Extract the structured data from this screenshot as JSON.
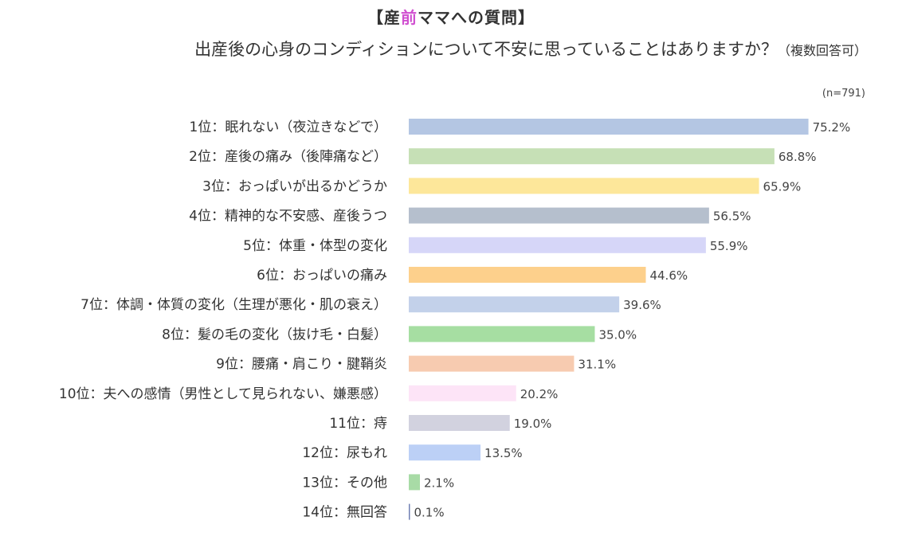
{
  "header": {
    "title_open": "【産",
    "title_accent": "前",
    "title_close": "ママへの質問】",
    "subtitle": "出産後の心身のコンディションについて不安に思っていることはありますか？",
    "subtitle_note": "（複数回答可）",
    "sample_size": "(n=791)"
  },
  "colors": {
    "title_accent": "#d04fd0"
  },
  "chart_data": {
    "type": "bar",
    "orientation": "horizontal",
    "categories": [
      "1位：眠れない（夜泣きなどで）",
      "2位：産後の痛み（後陣痛など）",
      "3位：おっぱいが出るかどうか",
      "4位：精神的な不安感、産後うつ",
      "5位：体重・体型の変化",
      "6位：おっぱいの痛み",
      "7位：体調・体質の変化（生理が悪化・肌の衰え）",
      "8位：髪の毛の変化（抜け毛・白髪）",
      "9位：腰痛・肩こり・腱鞘炎",
      "10位：夫への感情（男性として見られない、嫌悪感）",
      "11位：痔",
      "12位：尿もれ",
      "13位：その他",
      "14位：無回答"
    ],
    "values": [
      75.2,
      68.8,
      65.9,
      56.5,
      55.9,
      44.6,
      39.6,
      35.0,
      31.1,
      20.2,
      19.0,
      13.5,
      2.1,
      0.1
    ],
    "value_labels": [
      "75.2%",
      "68.8%",
      "65.9%",
      "56.5%",
      "55.9%",
      "44.6%",
      "39.6%",
      "35.0%",
      "31.1%",
      "20.2%",
      "19.0%",
      "13.5%",
      "2.1%",
      "0.1%"
    ],
    "bar_colors": [
      "#b4c6e3",
      "#c6e0b6",
      "#fde79a",
      "#b5bfcd",
      "#d6d6f8",
      "#fdd08c",
      "#c3d1ea",
      "#a6dea2",
      "#f7cbb0",
      "#fde4f7",
      "#d2d2df",
      "#bcd0f6",
      "#a8dba6",
      "#6f7fb3"
    ],
    "xlim": [
      0,
      100
    ],
    "grid": false,
    "legend": "none"
  }
}
